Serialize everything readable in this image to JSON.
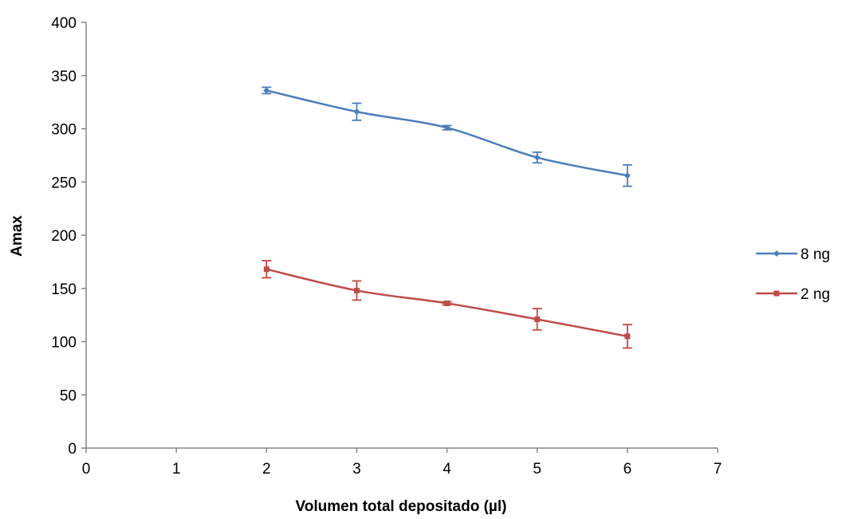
{
  "chart_data": {
    "type": "line",
    "title": "",
    "xlabel": "Volumen total depositado (µl)",
    "ylabel": "Amax",
    "xlim": [
      0,
      7
    ],
    "ylim": [
      0,
      400
    ],
    "xticks": [
      0,
      1,
      2,
      3,
      4,
      5,
      6,
      7
    ],
    "yticks": [
      0,
      50,
      100,
      150,
      200,
      250,
      300,
      350,
      400
    ],
    "grid": false,
    "legend_position": "right",
    "series": [
      {
        "name": "8 ng",
        "color": "#4a7ebb",
        "marker": "diamond",
        "x": [
          2,
          3,
          4,
          5,
          6
        ],
        "y": [
          336,
          316,
          301,
          273,
          256
        ],
        "error": [
          3,
          8,
          2,
          5,
          10
        ]
      },
      {
        "name": "2 ng",
        "color": "#be4b48",
        "marker": "square",
        "x": [
          2,
          3,
          4,
          5,
          6
        ],
        "y": [
          168,
          148,
          136,
          121,
          105
        ],
        "error": [
          8,
          9,
          1.5,
          10,
          11
        ]
      }
    ]
  }
}
